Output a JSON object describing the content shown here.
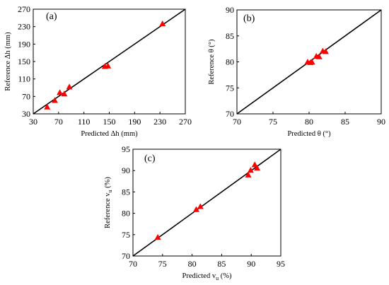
{
  "chart_data": [
    {
      "type": "scatter",
      "panel_label": "(a)",
      "xlabel": "Predicted Δh (mm)",
      "ylabel": "Reference Δh (mm)",
      "xlim": [
        30,
        270
      ],
      "ylim": [
        30,
        270
      ],
      "xticks": [
        "30",
        "70",
        "110",
        "150",
        "190",
        "230",
        "270"
      ],
      "yticks": [
        "30",
        "70",
        "110",
        "150",
        "190",
        "230",
        "270"
      ],
      "marker": "triangle",
      "marker_color": "#ff0000",
      "reference_line": "y = x",
      "grid": false,
      "points": [
        {
          "x": 52,
          "y": 46
        },
        {
          "x": 64,
          "y": 61
        },
        {
          "x": 72,
          "y": 79
        },
        {
          "x": 79,
          "y": 76
        },
        {
          "x": 87,
          "y": 92
        },
        {
          "x": 143,
          "y": 139
        },
        {
          "x": 148,
          "y": 140
        },
        {
          "x": 234,
          "y": 237
        }
      ]
    },
    {
      "type": "scatter",
      "panel_label": "(b)",
      "xlabel": "Predicted θ (°)",
      "ylabel": "Reference θ (°)",
      "xlim": [
        70,
        90
      ],
      "ylim": [
        70,
        90
      ],
      "xticks": [
        "70",
        "75",
        "80",
        "85",
        "90"
      ],
      "yticks": [
        "70",
        "75",
        "80",
        "85",
        "90"
      ],
      "marker": "triangle",
      "marker_color": "#ff0000",
      "reference_line": "y = x",
      "grid": false,
      "points": [
        {
          "x": 79.8,
          "y": 80.0
        },
        {
          "x": 80.2,
          "y": 79.9
        },
        {
          "x": 80.4,
          "y": 80.0
        },
        {
          "x": 81.0,
          "y": 81.1
        },
        {
          "x": 81.4,
          "y": 81.0
        },
        {
          "x": 81.9,
          "y": 82.1
        },
        {
          "x": 82.3,
          "y": 82.0
        }
      ]
    },
    {
      "type": "scatter",
      "panel_label": "(c)",
      "xlabel": "Predicted v",
      "xlabel_sub": "u",
      "xlabel_unit": "(%)",
      "ylabel": "Reference v",
      "ylabel_sub": "u",
      "ylabel_unit": "(%)",
      "xlim": [
        70,
        95
      ],
      "ylim": [
        70,
        95
      ],
      "xticks": [
        "70",
        "75",
        "80",
        "85",
        "90",
        "95"
      ],
      "yticks": [
        "70",
        "75",
        "80",
        "85",
        "90",
        "95"
      ],
      "marker": "triangle",
      "marker_color": "#ff0000",
      "reference_line": "y = x",
      "grid": false,
      "points": [
        {
          "x": 74.2,
          "y": 74.4
        },
        {
          "x": 80.7,
          "y": 80.9
        },
        {
          "x": 81.4,
          "y": 81.6
        },
        {
          "x": 89.5,
          "y": 89.0
        },
        {
          "x": 89.9,
          "y": 90.1
        },
        {
          "x": 90.6,
          "y": 91.4
        },
        {
          "x": 91.0,
          "y": 90.6
        }
      ]
    }
  ]
}
